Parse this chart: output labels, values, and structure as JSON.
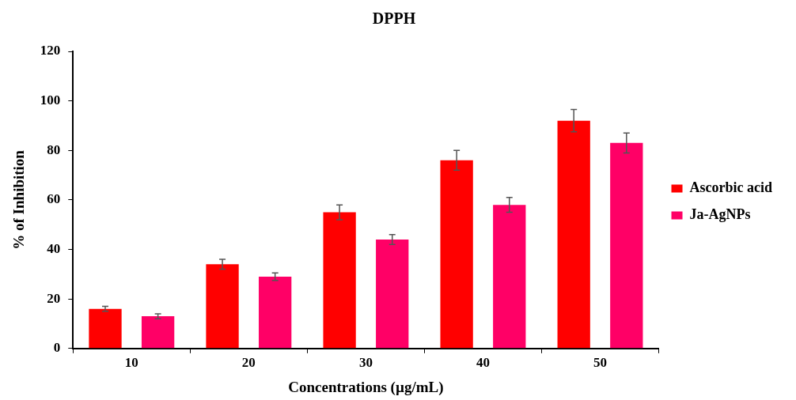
{
  "chart_data": {
    "type": "bar",
    "title": "DPPH",
    "xlabel": "Concentrations (µg/mL)",
    "ylabel": "% of Inhibition",
    "categories": [
      "10",
      "20",
      "30",
      "40",
      "50"
    ],
    "series": [
      {
        "name": "Ascorbic acid",
        "color": "#ff0000",
        "values": [
          16,
          34,
          55,
          76,
          92
        ],
        "errors": [
          1,
          2,
          3,
          4,
          4.5
        ]
      },
      {
        "name": "Ja-AgNPs",
        "color": "#ff0066",
        "values": [
          13,
          29,
          44,
          58,
          83
        ],
        "errors": [
          1,
          1.5,
          2,
          3,
          4
        ]
      }
    ],
    "ylim": [
      0,
      120
    ],
    "yticks": [
      0,
      20,
      40,
      60,
      80,
      100,
      120
    ],
    "grid": false,
    "legend": "right"
  }
}
